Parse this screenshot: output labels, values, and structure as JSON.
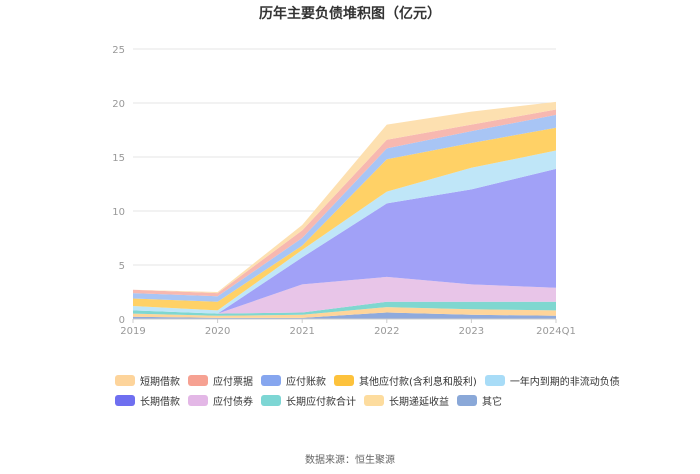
{
  "chart_data": {
    "type": "area",
    "title": "历年主要负债堆积图（亿元）",
    "source": "数据来源：恒生聚源",
    "x": [
      "2019",
      "2020",
      "2021",
      "2022",
      "2023",
      "2024Q1"
    ],
    "yticks": [
      "0",
      "5",
      "10",
      "15",
      "20",
      "25"
    ],
    "ylim": [
      0,
      25
    ],
    "grid": true,
    "legend_position": "bottom",
    "series": [
      {
        "name": "其它",
        "color": "#8faadc",
        "values": [
          0.2,
          0.1,
          0.1,
          0.6,
          0.4,
          0.3
        ]
      },
      {
        "name": "长期递延收益",
        "color": "#ffd59a",
        "values": [
          0.3,
          0.2,
          0.3,
          0.5,
          0.5,
          0.5
        ]
      },
      {
        "name": "长期应付款合计",
        "color": "#7fd7d0",
        "values": [
          0.3,
          0.2,
          0.2,
          0.5,
          0.7,
          0.8
        ]
      },
      {
        "name": "应付债券",
        "color": "#e8c5e8",
        "values": [
          0.0,
          0.0,
          2.6,
          2.3,
          1.6,
          1.3
        ]
      },
      {
        "name": "长期借款",
        "color": "#a1a1f7",
        "values": [
          0.0,
          0.0,
          2.5,
          6.8,
          8.8,
          11.0
        ]
      },
      {
        "name": "一年内到期的非流动负债",
        "color": "#bfe6f8",
        "values": [
          0.4,
          0.3,
          0.7,
          1.1,
          2.0,
          1.7
        ]
      },
      {
        "name": "其他应付款(含利息和股利)",
        "color": "#ffd166",
        "values": [
          0.7,
          0.8,
          0.4,
          3.0,
          2.3,
          2.1
        ]
      },
      {
        "name": "应付账款",
        "color": "#a8c5f5",
        "values": [
          0.5,
          0.5,
          0.7,
          1.0,
          1.1,
          1.2
        ]
      },
      {
        "name": "应付票据",
        "color": "#f7b8b0",
        "values": [
          0.3,
          0.3,
          0.7,
          0.8,
          0.6,
          0.5
        ]
      },
      {
        "name": "短期借款",
        "color": "#fde0b0",
        "values": [
          0.0,
          0.1,
          0.5,
          1.4,
          1.2,
          0.7
        ]
      }
    ],
    "legend_order": [
      "短期借款",
      "应付票据",
      "应付账款",
      "其他应付款(含利息和股利)",
      "一年内到期的非流动负债",
      "长期借款",
      "应付债券",
      "长期应付款合计",
      "长期递延收益",
      "其它"
    ],
    "legend_colors": [
      "#fdd49b",
      "#f6a192",
      "#86a6ef",
      "#fdc23c",
      "#a8dcf7",
      "#6f6ff0",
      "#e3b7e6",
      "#7dd6d4",
      "#fddc9e",
      "#8aa8d8"
    ]
  }
}
